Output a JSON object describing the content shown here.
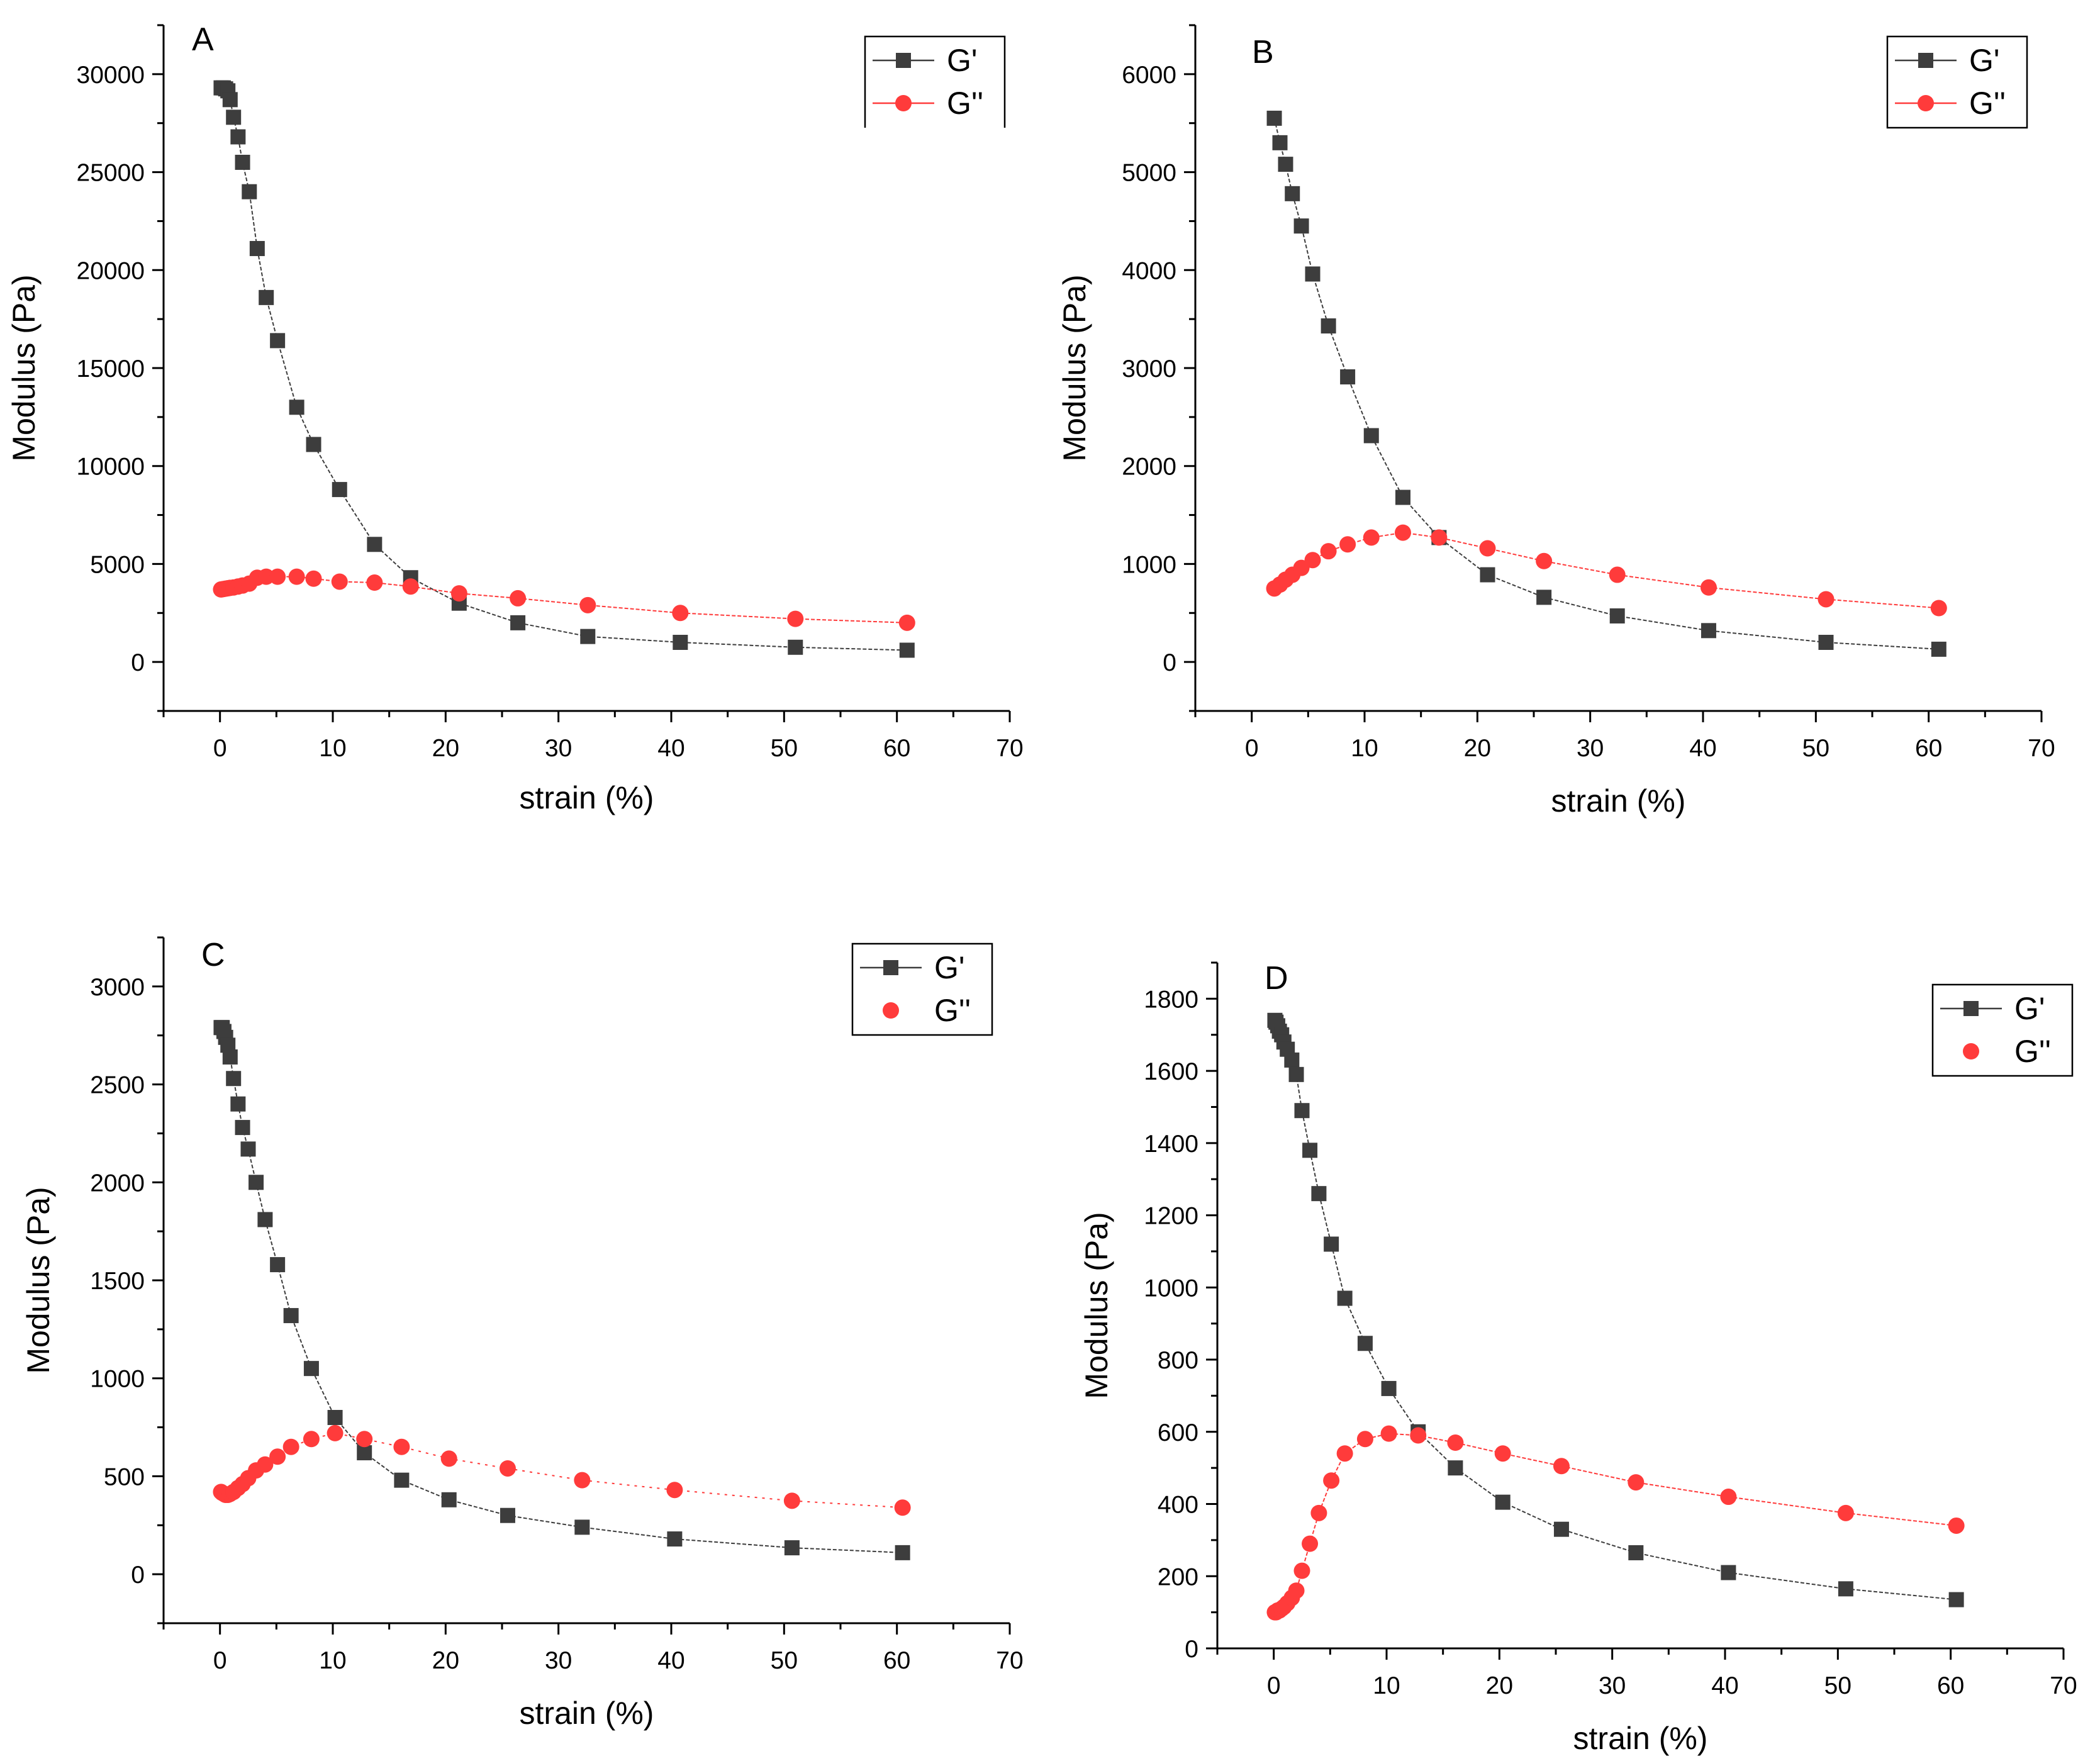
{
  "figure": {
    "description_free": true
  },
  "colors": {
    "g_prime": "#3d3d3d",
    "g_double_prime": "#ff3b3b",
    "axis": "#000000"
  },
  "legend_labels": [
    "G'",
    "G''"
  ],
  "chart_data": [
    {
      "panel": "A",
      "type": "scatter",
      "xlabel": "strain (%)",
      "ylabel": "Modulus (Pa)",
      "xlim": [
        -5,
        70
      ],
      "ylim": [
        -2500,
        32500
      ],
      "xticks": [
        0,
        10,
        20,
        30,
        40,
        50,
        60,
        70
      ],
      "yticks": [
        0,
        5000,
        10000,
        15000,
        20000,
        25000,
        30000
      ],
      "legend": "top-right",
      "series": [
        {
          "name": "G'",
          "marker": "square",
          "x": [
            0.1,
            0.3,
            0.5,
            0.7,
            0.9,
            1.2,
            1.6,
            2.0,
            2.6,
            3.3,
            4.1,
            5.1,
            6.8,
            8.3,
            10.6,
            13.7,
            16.9,
            21.2,
            26.4,
            32.6,
            40.8,
            51.0,
            60.9
          ],
          "y": [
            29300,
            29300,
            29250,
            29150,
            28700,
            27800,
            26800,
            25500,
            24000,
            21100,
            18600,
            16400,
            13000,
            11100,
            8800,
            6000,
            4300,
            3000,
            2000,
            1300,
            1000,
            750,
            600
          ]
        },
        {
          "name": "G''",
          "marker": "circle",
          "x": [
            0.1,
            0.3,
            0.5,
            0.7,
            0.9,
            1.2,
            1.6,
            2.0,
            2.6,
            3.3,
            4.1,
            5.1,
            6.8,
            8.3,
            10.6,
            13.7,
            16.9,
            21.2,
            26.4,
            32.6,
            40.8,
            51.0,
            60.9
          ],
          "y": [
            3700,
            3720,
            3740,
            3760,
            3780,
            3800,
            3850,
            3900,
            4000,
            4300,
            4350,
            4350,
            4350,
            4250,
            4100,
            4050,
            3850,
            3500,
            3250,
            2900,
            2500,
            2200,
            2000
          ]
        }
      ]
    },
    {
      "panel": "B",
      "type": "scatter",
      "xlabel": "strain (%)",
      "ylabel": "Modulus (Pa)",
      "xlim": [
        -5,
        70
      ],
      "ylim": [
        -500,
        6500
      ],
      "xticks": [
        0,
        10,
        20,
        30,
        40,
        50,
        60,
        70
      ],
      "yticks": [
        0,
        1000,
        2000,
        3000,
        4000,
        5000,
        6000
      ],
      "legend": "top-right",
      "series": [
        {
          "name": "G'",
          "marker": "square",
          "x": [
            2.0,
            2.5,
            3.0,
            3.6,
            4.4,
            5.4,
            6.8,
            8.5,
            10.6,
            13.4,
            16.6,
            20.9,
            25.9,
            32.4,
            40.5,
            50.9,
            60.9
          ],
          "y": [
            5550,
            5300,
            5080,
            4780,
            4450,
            3960,
            3430,
            2910,
            2310,
            1680,
            1270,
            890,
            660,
            470,
            320,
            200,
            130
          ]
        },
        {
          "name": "G''",
          "marker": "circle",
          "x": [
            2.0,
            2.5,
            3.0,
            3.6,
            4.4,
            5.4,
            6.8,
            8.5,
            10.6,
            13.4,
            16.6,
            20.9,
            25.9,
            32.4,
            40.5,
            50.9,
            60.9
          ],
          "y": [
            750,
            790,
            840,
            890,
            960,
            1040,
            1130,
            1200,
            1270,
            1320,
            1270,
            1160,
            1030,
            890,
            760,
            640,
            550
          ]
        }
      ]
    },
    {
      "panel": "C",
      "type": "scatter",
      "xlabel": "strain (%)",
      "ylabel": "Modulus (Pa)",
      "xlim": [
        -5,
        70
      ],
      "ylim": [
        -250,
        3250
      ],
      "xticks": [
        0,
        10,
        20,
        30,
        40,
        50,
        60,
        70
      ],
      "yticks": [
        0,
        500,
        1000,
        1500,
        2000,
        2500,
        3000
      ],
      "legend": "top-right",
      "series": [
        {
          "name": "G'",
          "marker": "square",
          "x": [
            0.1,
            0.2,
            0.35,
            0.5,
            0.7,
            0.9,
            1.2,
            1.6,
            2.0,
            2.5,
            3.2,
            4.0,
            5.1,
            6.3,
            8.1,
            10.2,
            12.8,
            16.1,
            20.3,
            25.5,
            32.1,
            40.3,
            50.7,
            60.5
          ],
          "y": [
            2790,
            2790,
            2770,
            2740,
            2700,
            2640,
            2530,
            2400,
            2280,
            2170,
            2000,
            1810,
            1580,
            1320,
            1050,
            800,
            620,
            480,
            380,
            300,
            240,
            180,
            135,
            110
          ]
        },
        {
          "name": "G''",
          "marker": "circle",
          "x": [
            0.1,
            0.2,
            0.35,
            0.5,
            0.7,
            0.9,
            1.2,
            1.6,
            2.0,
            2.5,
            3.2,
            4.0,
            5.1,
            6.3,
            8.1,
            10.2,
            12.8,
            16.1,
            20.3,
            25.5,
            32.1,
            40.3,
            50.7,
            60.5
          ],
          "y": [
            420,
            415,
            410,
            405,
            405,
            410,
            420,
            440,
            460,
            490,
            530,
            560,
            600,
            650,
            690,
            720,
            690,
            650,
            590,
            540,
            480,
            430,
            375,
            340
          ]
        }
      ]
    },
    {
      "panel": "D",
      "type": "scatter",
      "xlabel": "strain (%)",
      "ylabel": "Modulus (Pa)",
      "xlim": [
        -5,
        70
      ],
      "ylim": [
        0,
        1900
      ],
      "xticks": [
        0,
        10,
        20,
        30,
        40,
        50,
        60,
        70
      ],
      "yticks": [
        0,
        200,
        400,
        600,
        800,
        1000,
        1200,
        1400,
        1600,
        1800
      ],
      "legend": "top-right",
      "series": [
        {
          "name": "G'",
          "marker": "square",
          "x": [
            0.1,
            0.2,
            0.35,
            0.5,
            0.7,
            0.9,
            1.2,
            1.6,
            2.0,
            2.5,
            3.2,
            4.0,
            5.1,
            6.3,
            8.1,
            10.2,
            12.8,
            16.1,
            20.3,
            25.5,
            32.1,
            40.3,
            50.7,
            60.5
          ],
          "y": [
            1740,
            1735,
            1725,
            1710,
            1700,
            1680,
            1660,
            1630,
            1590,
            1490,
            1380,
            1260,
            1120,
            970,
            845,
            720,
            600,
            500,
            405,
            330,
            265,
            210,
            165,
            135
          ]
        },
        {
          "name": "G''",
          "marker": "circle",
          "x": [
            0.1,
            0.2,
            0.35,
            0.5,
            0.7,
            0.9,
            1.2,
            1.6,
            2.0,
            2.5,
            3.2,
            4.0,
            5.1,
            6.3,
            8.1,
            10.2,
            12.8,
            16.1,
            20.3,
            25.5,
            32.1,
            40.3,
            50.7,
            60.5
          ],
          "y": [
            100,
            100,
            105,
            105,
            110,
            115,
            125,
            140,
            160,
            215,
            290,
            375,
            465,
            540,
            580,
            595,
            590,
            570,
            540,
            505,
            460,
            420,
            375,
            340
          ]
        }
      ]
    }
  ]
}
